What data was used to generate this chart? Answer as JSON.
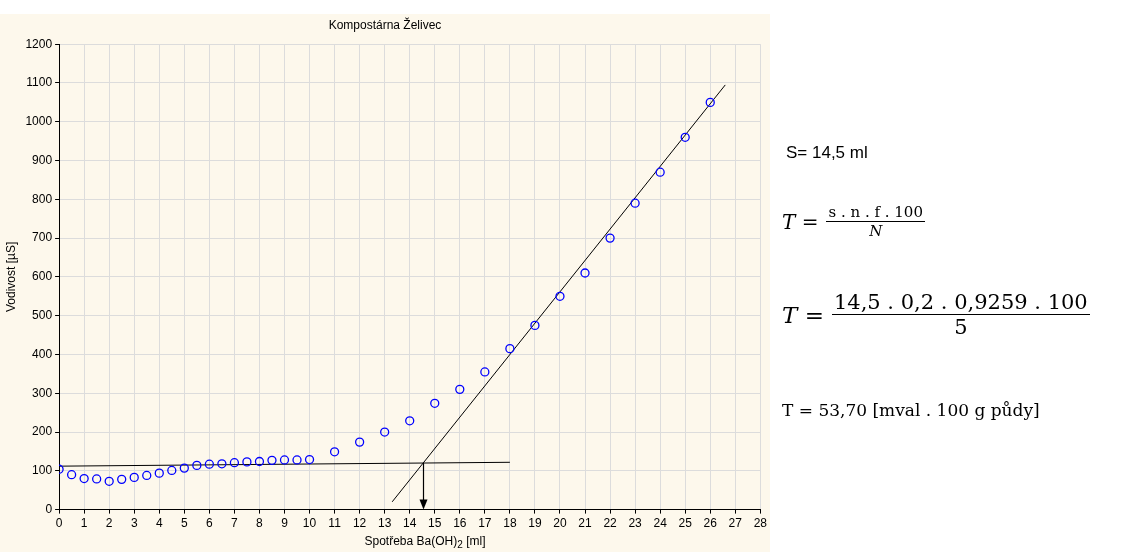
{
  "chart_data": {
    "type": "scatter",
    "title": "Kompostárna Želivec",
    "xlabel": "Spotřeba Ba(OH)$_{2}$ [ml]",
    "ylabel": "Vodivost [µS]",
    "xlim": [
      0,
      28
    ],
    "xticks": [
      0,
      1,
      2,
      3,
      4,
      5,
      6,
      7,
      8,
      9,
      10,
      11,
      12,
      13,
      14,
      15,
      16,
      17,
      18,
      19,
      20,
      21,
      22,
      23,
      24,
      25,
      26,
      27,
      28
    ],
    "ylim": [
      0,
      1200
    ],
    "yticks": [
      0,
      100,
      200,
      300,
      400,
      500,
      600,
      700,
      800,
      900,
      1000,
      1100,
      1200
    ],
    "grid": true,
    "legend": false,
    "marker": "circle",
    "series": [
      {
        "type": "scatter",
        "color": "#0000ff",
        "x": [
          0,
          0.5,
          1,
          1.5,
          2,
          2.5,
          3,
          3.5,
          4,
          4.5,
          5,
          5.5,
          6,
          6.5,
          7,
          7.5,
          8,
          8.5,
          9,
          9.5,
          10,
          11,
          12,
          13,
          14,
          15,
          16,
          17,
          18,
          19,
          20,
          21,
          22,
          23,
          24,
          25,
          26
        ],
        "values": [
          104,
          90,
          80,
          79,
          73,
          78,
          83,
          88,
          94,
          101,
          107,
          114,
          117,
          118,
          121,
          123,
          124,
          127,
          128,
          128,
          129,
          149,
          174,
          200,
          229,
          274,
          310,
          355,
          415,
          475,
          550,
          610,
          700,
          790,
          870,
          960,
          1050
        ]
      },
      {
        "type": "line",
        "color": "#000000",
        "marker": "none",
        "x": [
          0,
          18
        ],
        "values": [
          112,
          122
        ]
      },
      {
        "type": "line",
        "color": "#000000",
        "marker": "none",
        "x": [
          13.3,
          26.6
        ],
        "values": [
          20,
          1095
        ]
      }
    ],
    "annotations": [
      "S= 14,5 ml",
      "T =",
      "s . n . f . 100",
      "N",
      "T =",
      "14,5 . 0,2 . 0,9259 . 100",
      "5",
      "T = 53,70 [mval . 100 g půdy]"
    ]
  }
}
